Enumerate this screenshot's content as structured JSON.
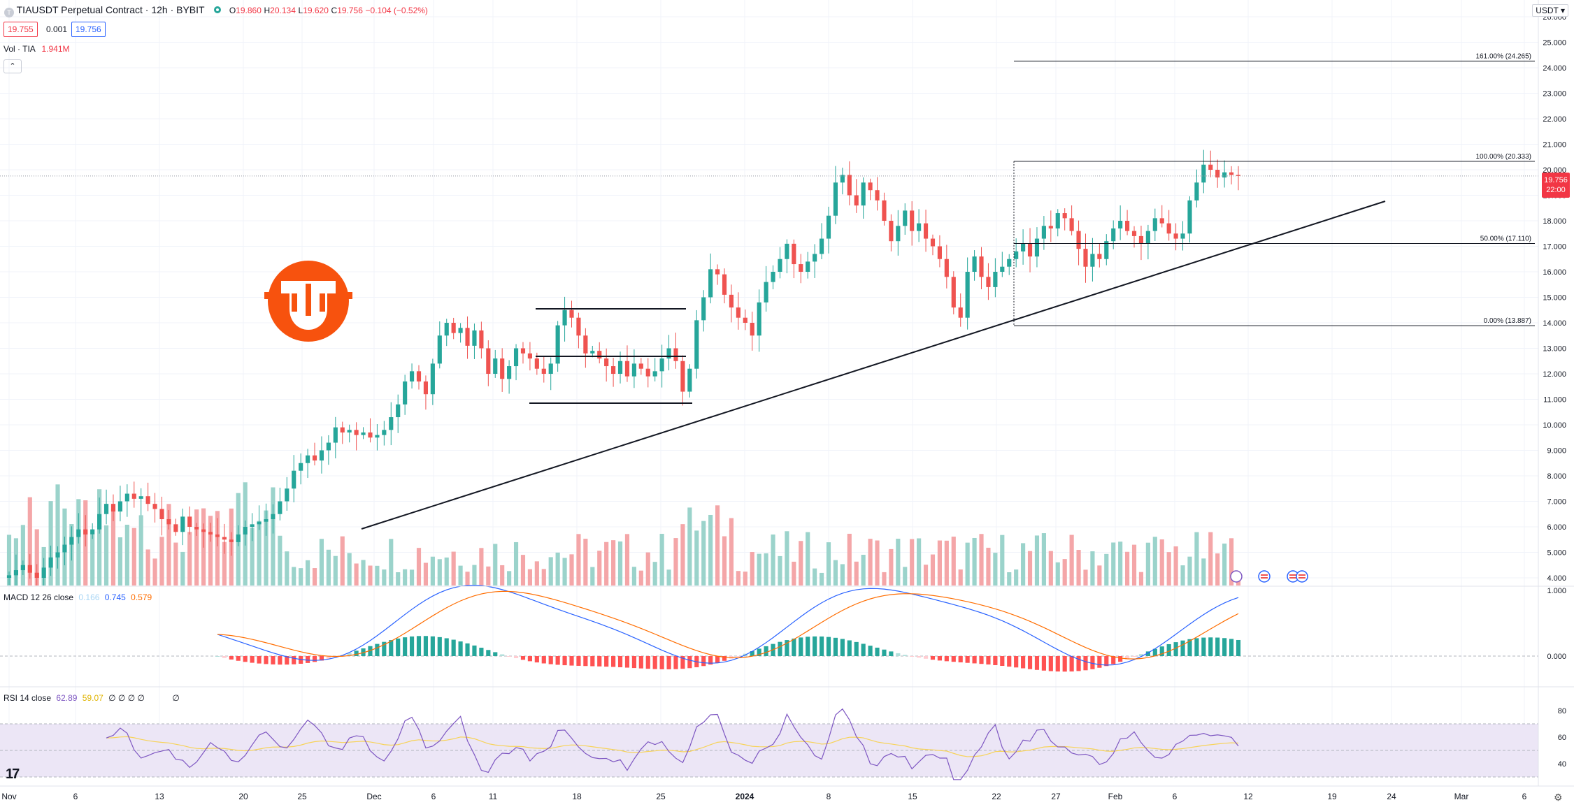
{
  "header": {
    "title": "TIAUSDT Perpetual Contract · 12h · BYBIT",
    "ohlc": {
      "o_label": "O",
      "o": "19.860",
      "h_label": "H",
      "h": "20.134",
      "l_label": "L",
      "l": "19.620",
      "c_label": "C",
      "c": "19.756",
      "change": "−0.104 (−0.52%)"
    },
    "bid": "19.755",
    "spread": "0.001",
    "ask": "19.756",
    "vol_label": "Vol · TIA",
    "vol_value": "1.941M",
    "collapse_icon": "chevron-up-icon"
  },
  "currency_button": "USDT ▾",
  "last_price": {
    "value": "19.756",
    "countdown": "22:00"
  },
  "price_axis": [
    "26.000",
    "25.000",
    "24.000",
    "23.000",
    "22.000",
    "21.000",
    "20.000",
    "19.000",
    "18.000",
    "17.000",
    "16.000",
    "15.000",
    "14.000",
    "13.000",
    "12.000",
    "11.000",
    "10.000",
    "9.000",
    "8.000",
    "7.000",
    "6.000",
    "5.000",
    "4.000"
  ],
  "time_axis": [
    "Nov",
    "6",
    "13",
    "20",
    "25",
    "Dec",
    "6",
    "11",
    "18",
    "25",
    "2024",
    "8",
    "15",
    "22",
    "27",
    "Feb",
    "6",
    "12",
    "19",
    "24",
    "Mar",
    "6"
  ],
  "fib_levels": [
    {
      "label": "161.00% (24.265)",
      "price": 24.265
    },
    {
      "label": "100.00% (20.333)",
      "price": 20.333
    },
    {
      "label": "50.00% (17.110)",
      "price": 17.11
    },
    {
      "label": "0.00% (13.887)",
      "price": 13.887
    }
  ],
  "macd": {
    "label": "MACD 12 26 close",
    "hist": "0.166",
    "macd": "0.745",
    "signal": "0.579",
    "axis": [
      "1.000",
      "0.000"
    ]
  },
  "rsi": {
    "label": "RSI 14 close",
    "value": "62.89",
    "ma": "59.07",
    "extras": "∅ ∅ ∅ ∅",
    "extra2": "∅",
    "axis": [
      "80",
      "60",
      "40"
    ]
  },
  "colors": {
    "up": "#26a69a",
    "down": "#ef5350",
    "vol_up": "#9bd3cb",
    "vol_down": "#f4a6a8",
    "macd_line": "#2962ff",
    "signal_line": "#ff6d00",
    "rsi_line": "#7e57c2",
    "rsi_ma": "#f7d358",
    "rsi_band": "#ece6f6",
    "logo": "#f7520e"
  },
  "logo_name": "bitcoin-style-logo",
  "branding": "17"
}
